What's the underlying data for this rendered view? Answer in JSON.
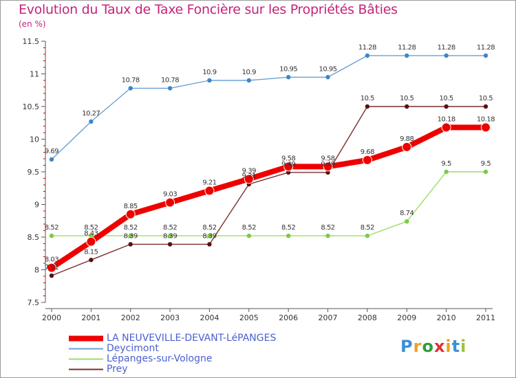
{
  "title": "Evolution du Taux de Taxe Foncière sur les Propriétés Bâties",
  "unit_label": "(en %)",
  "logo": {
    "letters": [
      "P",
      "r",
      "o",
      "x",
      "i",
      "t",
      "i"
    ],
    "colors": [
      "#3a8fd8",
      "#f0a020",
      "#2e9e3e",
      "#e03030",
      "#f0a020",
      "#3a8fd8",
      "#9ac33a"
    ]
  },
  "chart_data": {
    "type": "line",
    "title": "Evolution du Taux de Taxe Foncière sur les Propriétés Bâties",
    "ylabel": "(en %)",
    "xlabel": "",
    "categories": [
      "2000",
      "2001",
      "2002",
      "2003",
      "2004",
      "2005",
      "2006",
      "2007",
      "2008",
      "2009",
      "2010",
      "2011"
    ],
    "ylim": [
      7.5,
      11.5
    ],
    "yticks": [
      "7.5",
      "8",
      "8.5",
      "9",
      "9.5",
      "10",
      "10.5",
      "11",
      "11.5"
    ],
    "grid": false,
    "legend_position": "bottom-left",
    "series": [
      {
        "name": "LA NEUVEVILLE-DEVANT-LéPANGES",
        "color": "#ee0000",
        "emphasis": true,
        "values": [
          8.03,
          8.43,
          8.85,
          9.03,
          9.21,
          9.39,
          9.58,
          9.58,
          9.68,
          9.88,
          10.18,
          10.18
        ],
        "labels": [
          "8.03",
          "8.43",
          "8.85",
          "9.03",
          "9.21",
          "9.39",
          "9.58",
          "9.58",
          "9.68",
          "9.88",
          "10.18",
          "10.18"
        ]
      },
      {
        "name": "Deycimont",
        "color": "#6aa0d6",
        "dot": "#3e86c6",
        "values": [
          9.69,
          10.27,
          10.78,
          10.78,
          10.9,
          10.9,
          10.95,
          10.95,
          11.28,
          11.28,
          11.28,
          11.28
        ],
        "labels": [
          "9.69",
          "10.27",
          "10.78",
          "10.78",
          "10.9",
          "10.9",
          "10.95",
          "10.95",
          "11.28",
          "11.28",
          "11.28",
          "11.28"
        ]
      },
      {
        "name": "Lépanges-sur-Vologne",
        "color": "#99dd66",
        "dot": "#7acc44",
        "values": [
          8.52,
          8.52,
          8.52,
          8.52,
          8.52,
          8.52,
          8.52,
          8.52,
          8.52,
          8.74,
          9.5,
          9.5
        ],
        "labels": [
          "8.52",
          "8.52",
          "8.52",
          "8.52",
          "8.52",
          "8.52",
          "8.52",
          "8.52",
          "8.52",
          "8.74",
          "9.5",
          "9.5"
        ]
      },
      {
        "name": "Prey",
        "color": "#7a2d2d",
        "dot": "#5a1010",
        "values": [
          7.91,
          8.15,
          8.39,
          8.39,
          8.39,
          9.31,
          9.49,
          9.49,
          10.5,
          10.5,
          10.5,
          10.5
        ],
        "labels": [
          "7.91",
          "8.15",
          "8.39",
          "8.39",
          "8.39",
          "9.31",
          "9.49",
          "9.49",
          "10.5",
          "10.5",
          "10.5",
          "10.5"
        ]
      }
    ]
  }
}
